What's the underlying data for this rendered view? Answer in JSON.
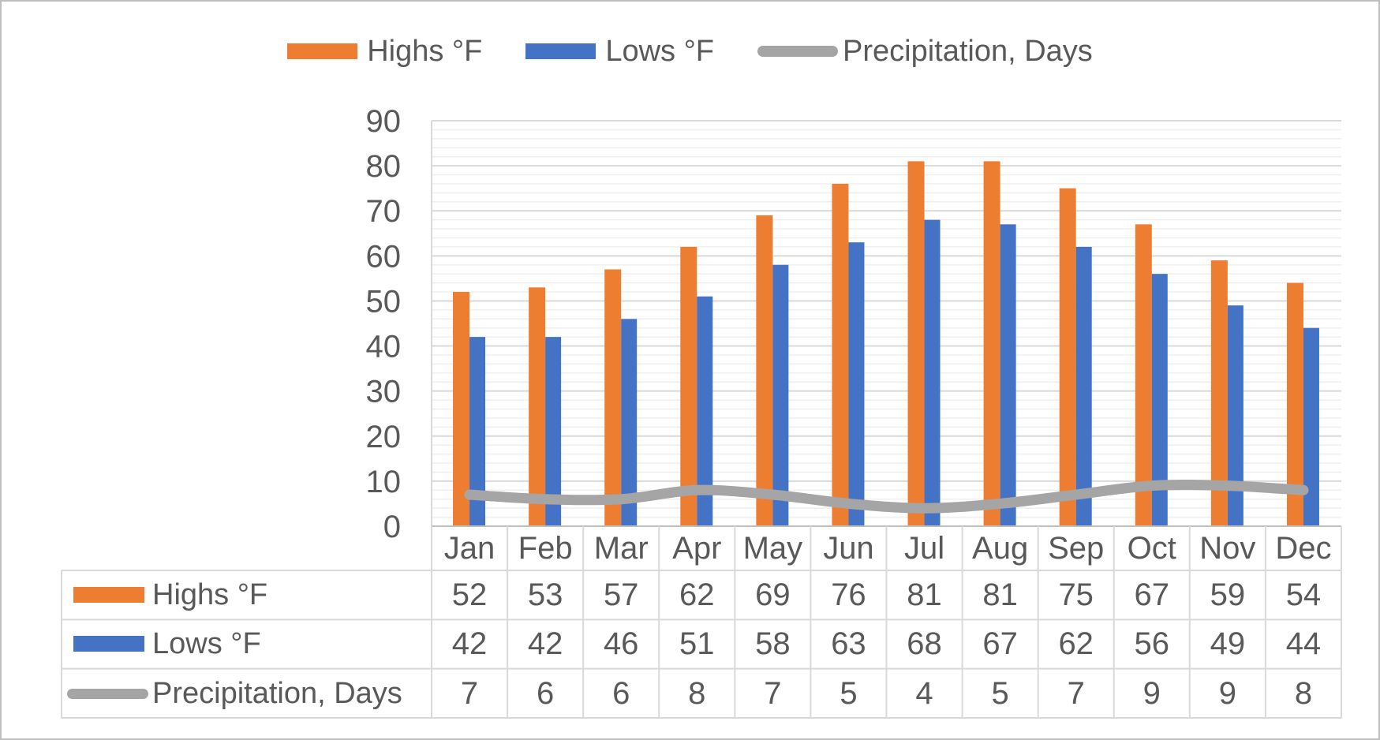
{
  "colors": {
    "highs": "#ED7D31",
    "lows": "#4472C4",
    "precip": "#A5A5A5",
    "text": "#595959",
    "grid_major": "#D9D9D9",
    "grid_minor": "#EFEFEF",
    "axis": "#BFBFBF",
    "table_border": "#D9D9D9",
    "frame_border": "#BFBFBF",
    "background": "#FFFFFF"
  },
  "chart_data": {
    "type": "bar",
    "title": "",
    "categories": [
      "Jan",
      "Feb",
      "Mar",
      "Apr",
      "May",
      "Jun",
      "Jul",
      "Aug",
      "Sep",
      "Oct",
      "Nov",
      "Dec"
    ],
    "series": [
      {
        "name": "Highs °F",
        "type": "bar",
        "color": "#ED7D31",
        "values": [
          52,
          53,
          57,
          62,
          69,
          76,
          81,
          81,
          75,
          67,
          59,
          54
        ]
      },
      {
        "name": "Lows °F",
        "type": "bar",
        "color": "#4472C4",
        "values": [
          42,
          42,
          46,
          51,
          58,
          63,
          68,
          67,
          62,
          56,
          49,
          44
        ]
      },
      {
        "name": "Precipitation, Days",
        "type": "line",
        "color": "#A5A5A5",
        "smooth": true,
        "values": [
          7,
          6,
          6,
          8,
          7,
          5,
          4,
          5,
          7,
          9,
          9,
          8
        ]
      }
    ],
    "ylim": [
      0,
      90
    ],
    "y_tick_interval": 10,
    "y_minor_interval": 2,
    "y_ticks": [
      "0",
      "10",
      "20",
      "30",
      "40",
      "50",
      "60",
      "70",
      "80",
      "90"
    ],
    "grid": true,
    "legend_position": "top",
    "data_table_shown": true
  }
}
